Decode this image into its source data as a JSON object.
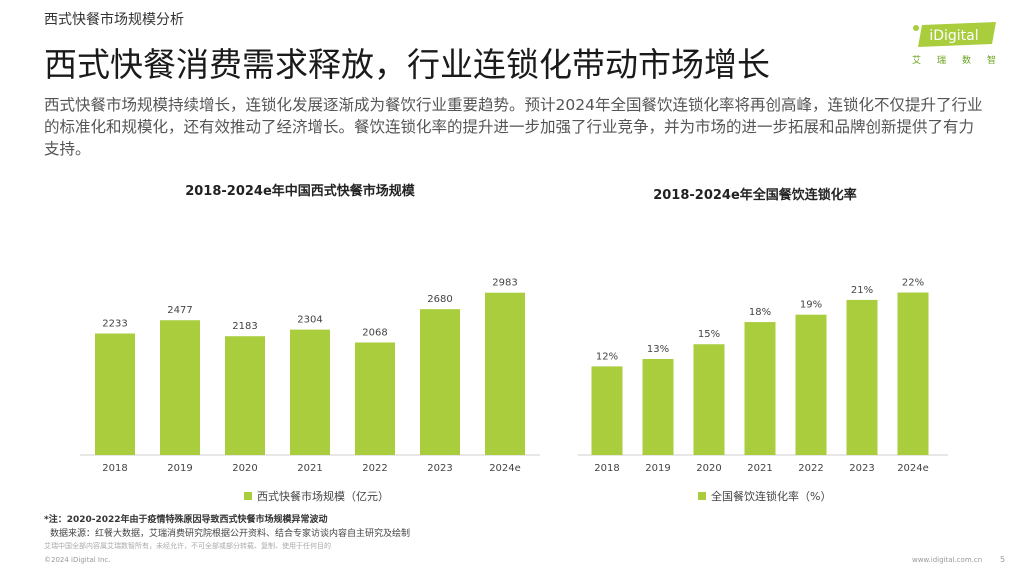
{
  "header": {
    "section_label": "西式快餐市场规模分析",
    "headline": "西式快餐消费需求释放，行业连锁化带动市场增长",
    "intro": "西式快餐市场规模持续增长，连锁化发展逐渐成为餐饮行业重要趋势。预计2024年全国餐饮连锁化率将再创高峰，连锁化不仅提升了行业的标准化和规模化，还有效推动了经济增长。餐饮连锁化率的提升进一步加强了行业竞争，并为市场的进一步拓展和品牌创新提供了有力支持。"
  },
  "logo": {
    "text": "iDigital",
    "chars": [
      "艾",
      "瑞",
      "数",
      "智"
    ],
    "color": "#6aa31b"
  },
  "colors": {
    "bar": "#a9cd3d",
    "accent": "#8cbf26"
  },
  "chart_data": [
    {
      "type": "bar",
      "title": "2018-2024e年中国西式快餐市场规模",
      "categories": [
        "2018",
        "2019",
        "2020",
        "2021",
        "2022",
        "2023",
        "2024e"
      ],
      "series": [
        {
          "name": "西式快餐市场规模（亿元）",
          "values": [
            2233,
            2477,
            2183,
            2304,
            2068,
            2680,
            2983
          ]
        }
      ],
      "value_labels": [
        "2233",
        "2477",
        "2183",
        "2304",
        "2068",
        "2680",
        "2983"
      ],
      "xlabel": "",
      "ylabel": "",
      "ylim": [
        0,
        3400
      ],
      "grid": false,
      "legend": "bottom-center"
    },
    {
      "type": "bar",
      "title": "2018-2024e年全国餐饮连锁化率",
      "categories": [
        "2018",
        "2019",
        "2020",
        "2021",
        "2022",
        "2023",
        "2024e"
      ],
      "series": [
        {
          "name": "全国餐饮连锁化率（%）",
          "values": [
            12,
            13,
            15,
            18,
            19,
            21,
            22
          ]
        }
      ],
      "value_labels": [
        "12%",
        "13%",
        "15%",
        "18%",
        "19%",
        "21%",
        "22%"
      ],
      "xlabel": "",
      "ylabel": "",
      "ylim": [
        0,
        26
      ],
      "grid": false,
      "legend": "bottom-center"
    }
  ],
  "footer": {
    "note": "*注：2020-2022年由于疫情特殊原因导致西式快餐市场规模异常波动",
    "source": "数据来源：红餐大数据，艾瑞消费研究院根据公开资料、结合专家访谈内容自主研究及绘制",
    "disclaimer": "艾瑞中国全部内容属艾瑞数智所有，未经允许，不可全部或部分转载、复制、使用于任何目的",
    "copyright": "©2024 iDigital Inc.",
    "website": "www.idigital.com.cn",
    "page_number": "5"
  }
}
